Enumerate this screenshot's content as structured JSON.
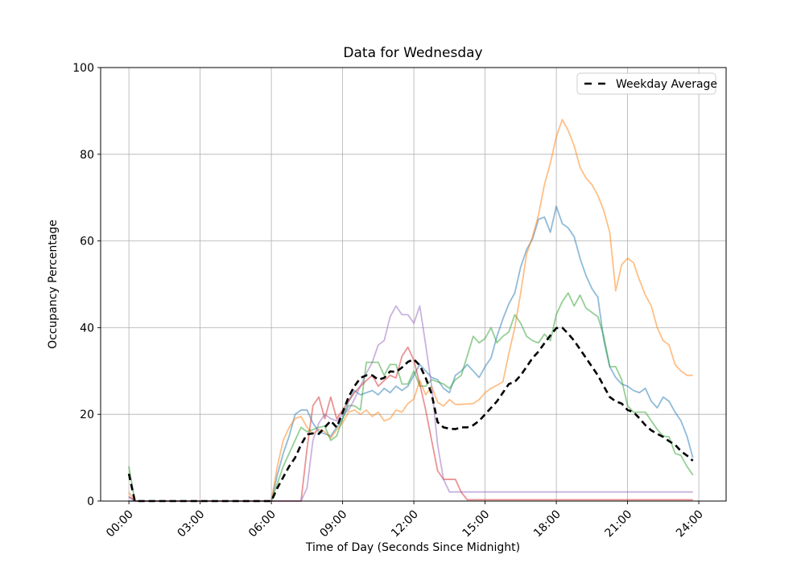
{
  "chart_data": {
    "type": "line",
    "title": "Data for Wednesday",
    "xlabel": "Time of Day (Seconds Since Midnight)",
    "ylabel": "Occupancy Percentage",
    "grid": true,
    "ylim": [
      0,
      100
    ],
    "yticks": [
      0,
      20,
      40,
      60,
      80,
      100
    ],
    "ytick_labels": [
      "0",
      "20",
      "40",
      "60",
      "80",
      "100"
    ],
    "xticks_seconds": [
      0,
      10800,
      21600,
      32400,
      43200,
      54000,
      64800,
      75600,
      86400
    ],
    "xtick_labels": [
      "00:00",
      "03:00",
      "06:00",
      "09:00",
      "12:00",
      "15:00",
      "18:00",
      "21:00",
      "24:00"
    ],
    "legend": {
      "position": "upper right",
      "label": "Weekday Average"
    },
    "x_start_seconds": 0,
    "x_step_seconds": 900,
    "x_point_count": 96,
    "series": [
      {
        "name": "day-series-1",
        "color": "#1f77b4",
        "opacity": 0.5,
        "width": 1.8,
        "dashed": false,
        "values": [
          0,
          0,
          0,
          0,
          0,
          0,
          0,
          0,
          0,
          0,
          0,
          0,
          0,
          0,
          0,
          0,
          0,
          0,
          0,
          0,
          0,
          0,
          0,
          0,
          0,
          6,
          11,
          15,
          20,
          21,
          21,
          18,
          16,
          15.5,
          15,
          17,
          19,
          23,
          25.5,
          24.5,
          25,
          25.5,
          24.5,
          26,
          25,
          26.5,
          25.5,
          26.5,
          29,
          31.5,
          30,
          28.5,
          28,
          26,
          25,
          29,
          30,
          31.5,
          30,
          28.5,
          31,
          33,
          38,
          42,
          45.5,
          48,
          54,
          58,
          60.5,
          65,
          65.5,
          62,
          68,
          64,
          63,
          61,
          56,
          52,
          49,
          47,
          37,
          31,
          28.5,
          27,
          26.5,
          25.5,
          25,
          26,
          23,
          21.5,
          24,
          23,
          20.5,
          18.5,
          15,
          10
        ]
      },
      {
        "name": "day-series-2",
        "color": "#ff7f0e",
        "opacity": 0.5,
        "width": 1.8,
        "dashed": false,
        "values": [
          2,
          0,
          0,
          0,
          0,
          0,
          0,
          0,
          0,
          0,
          0,
          0,
          0,
          0,
          0,
          0,
          0,
          0,
          0,
          0,
          0,
          0,
          0,
          0,
          0,
          8,
          14,
          17,
          19,
          19.5,
          17,
          15.5,
          16.5,
          16,
          14.5,
          16.5,
          18,
          20.5,
          21,
          20,
          21,
          19.5,
          20.5,
          18.5,
          19,
          21,
          20.5,
          22.5,
          23.5,
          27.8,
          24.5,
          26.5,
          22.8,
          21.9,
          23.4,
          22.3,
          22.3,
          22.4,
          22.5,
          23.4,
          25,
          26,
          26.7,
          27.5,
          34,
          40,
          48,
          57,
          61,
          66,
          73,
          78,
          84,
          88,
          85.5,
          82,
          77,
          74.5,
          73,
          70.5,
          67,
          62,
          48.5,
          54.5,
          56,
          55,
          51,
          47.5,
          45,
          40,
          37,
          36,
          31.5,
          30,
          29,
          29
        ]
      },
      {
        "name": "day-series-3",
        "color": "#2ca02c",
        "opacity": 0.5,
        "width": 1.8,
        "dashed": false,
        "values": [
          8,
          0,
          0,
          0,
          0,
          0,
          0,
          0,
          0,
          0,
          0,
          0,
          0,
          0,
          0,
          0,
          0,
          0,
          0,
          0,
          0,
          0,
          0,
          0,
          0,
          4,
          8,
          11,
          14,
          17,
          16,
          16.5,
          17,
          17.3,
          14,
          15,
          19,
          22,
          22,
          21,
          32,
          32,
          32,
          29,
          31.5,
          31.5,
          27,
          27,
          30,
          26.5,
          26.5,
          28,
          27.5,
          27,
          26,
          28,
          29,
          33.5,
          38,
          36.5,
          37.5,
          40,
          36.5,
          38,
          39,
          43,
          41,
          38,
          37,
          36.5,
          38.5,
          37,
          43,
          46,
          48,
          45,
          47.5,
          44.5,
          43.5,
          42.5,
          38,
          31,
          31,
          28,
          22,
          20.5,
          20.5,
          20.5,
          18.5,
          16.5,
          15,
          14.8,
          11,
          10.5,
          8,
          6
        ]
      },
      {
        "name": "day-series-4",
        "color": "#d62728",
        "opacity": 0.5,
        "width": 1.8,
        "dashed": false,
        "values": [
          1,
          0,
          0,
          0,
          0,
          0,
          0,
          0,
          0,
          0,
          0,
          0,
          0,
          0,
          0,
          0,
          0,
          0,
          0,
          0,
          0,
          0,
          0,
          0,
          0,
          0,
          0,
          0,
          0,
          0,
          12,
          22,
          24,
          19,
          24,
          19,
          21,
          23,
          25,
          26.5,
          27.8,
          29,
          26.5,
          27.8,
          29,
          28.4,
          33.4,
          35.5,
          32.5,
          27,
          21,
          14,
          7,
          5,
          5,
          5,
          2,
          0.3,
          0.3,
          0.3,
          0.3,
          0.3,
          0.3,
          0.3,
          0.3,
          0.3,
          0.3,
          0.3,
          0.3,
          0.3,
          0.3,
          0.3,
          0.3,
          0.3,
          0.3,
          0.3,
          0.3,
          0.3,
          0.3,
          0.3,
          0.3,
          0.3,
          0.3,
          0.3,
          0.3,
          0.3,
          0.3,
          0.3,
          0.3,
          0.3,
          0.3,
          0.3,
          0.3,
          0.3,
          0.3,
          0.3
        ]
      },
      {
        "name": "day-series-5",
        "color": "#9467bd",
        "opacity": 0.5,
        "width": 1.8,
        "dashed": false,
        "values": [
          1,
          0,
          0,
          0,
          0,
          0,
          0,
          0,
          0,
          0,
          0,
          0,
          0,
          0,
          0,
          0,
          0,
          0,
          0,
          0,
          0,
          0,
          0,
          0,
          0,
          0,
          0,
          0,
          0,
          0,
          3,
          14,
          18,
          20,
          19,
          18.5,
          20,
          21,
          23.5,
          26.5,
          29.5,
          32,
          36,
          37,
          42.5,
          45,
          43,
          43,
          41,
          45,
          36,
          26.5,
          13,
          5,
          2.1,
          2.1,
          2.1,
          2.1,
          2.1,
          2.1,
          2.1,
          2.1,
          2.1,
          2.1,
          2.1,
          2.1,
          2.1,
          2.1,
          2.1,
          2.1,
          2.1,
          2.1,
          2.1,
          2.1,
          2.1,
          2.1,
          2.1,
          2.1,
          2.1,
          2.1,
          2.1,
          2.1,
          2.1,
          2.1,
          2.1,
          2.1,
          2.1,
          2.1,
          2.1,
          2.1,
          2.1,
          2.1,
          2.1,
          2.1,
          2.1,
          2.1
        ]
      },
      {
        "name": "Weekday Average",
        "color": "#000000",
        "opacity": 1,
        "width": 2.6,
        "dashed": true,
        "values": [
          6.3,
          0,
          0,
          0,
          0,
          0,
          0,
          0,
          0,
          0,
          0,
          0,
          0,
          0,
          0,
          0,
          0,
          0,
          0,
          0,
          0,
          0,
          0,
          0,
          0,
          3,
          5.5,
          8,
          10,
          13,
          15.4,
          15.6,
          15.5,
          17,
          18.5,
          17,
          20.4,
          24,
          26.5,
          28.4,
          29,
          29,
          28,
          28.4,
          29.9,
          29.8,
          30.8,
          32.1,
          32.7,
          31.3,
          28.4,
          24.7,
          18.2,
          17,
          16.7,
          16.6,
          17,
          17,
          17.5,
          18.5,
          20,
          21.5,
          23,
          25,
          27,
          27.5,
          29,
          31,
          33,
          34.5,
          36.4,
          38.2,
          39.9,
          40,
          38.6,
          37,
          35,
          33,
          31,
          29,
          26.5,
          24,
          23,
          22.5,
          21,
          20.5,
          19.1,
          17.5,
          16.3,
          15.5,
          14.8,
          13.8,
          13,
          11.5,
          10.5,
          9.3
        ]
      }
    ]
  }
}
